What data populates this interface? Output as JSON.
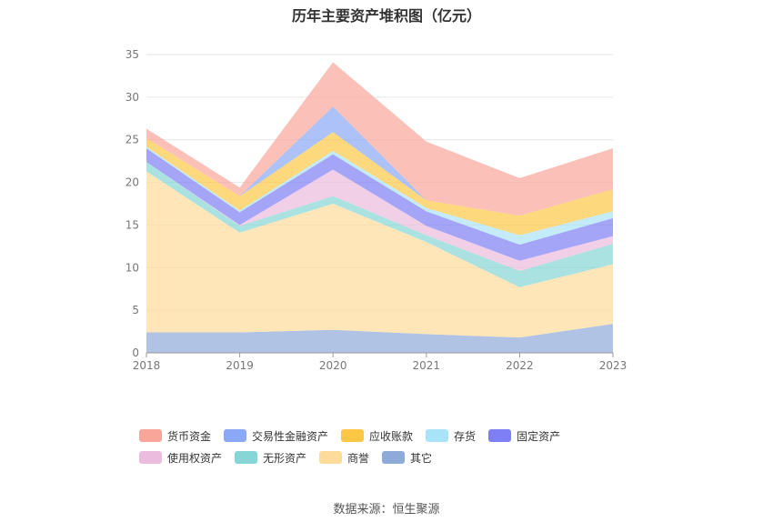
{
  "title": "历年主要资产堆积图（亿元）",
  "source": "数据来源：恒生聚源",
  "chart_data": {
    "type": "area",
    "stacked": true,
    "x": [
      "2018",
      "2019",
      "2020",
      "2021",
      "2022",
      "2023"
    ],
    "ylim": [
      0,
      35
    ],
    "yticks": [
      0,
      5,
      10,
      15,
      20,
      25,
      30,
      35
    ],
    "grid": true,
    "legend_position": "bottom",
    "series": [
      {
        "name": "其它",
        "color": "#8eaad8",
        "values": [
          2.4,
          2.4,
          2.7,
          2.2,
          1.8,
          3.4
        ]
      },
      {
        "name": "商誉",
        "color": "#fddc9b",
        "values": [
          18.9,
          11.7,
          14.8,
          10.8,
          5.9,
          7.0
        ]
      },
      {
        "name": "无形资产",
        "color": "#86d6d6",
        "values": [
          1.1,
          0.8,
          0.9,
          0.8,
          1.9,
          2.4
        ]
      },
      {
        "name": "使用权资产",
        "color": "#ebbcdd",
        "values": [
          0.0,
          0.1,
          3.1,
          1.1,
          1.2,
          0.9
        ]
      },
      {
        "name": "固定资产",
        "color": "#7f7ff5",
        "values": [
          1.6,
          1.5,
          1.8,
          1.7,
          1.9,
          2.1
        ]
      },
      {
        "name": "存货",
        "color": "#a9e3f7",
        "values": [
          0.2,
          0.2,
          0.4,
          0.4,
          1.1,
          0.8
        ]
      },
      {
        "name": "应收账款",
        "color": "#fcc744",
        "values": [
          1.0,
          1.7,
          2.2,
          0.9,
          2.3,
          2.6
        ]
      },
      {
        "name": "交易性金融资产",
        "color": "#8aa8f5",
        "values": [
          0.0,
          0.0,
          3.0,
          0.0,
          0.0,
          0.0
        ]
      },
      {
        "name": "货币资金",
        "color": "#f9a59a",
        "values": [
          1.1,
          1.0,
          5.2,
          6.9,
          4.4,
          4.8
        ]
      }
    ]
  },
  "legend": [
    {
      "name": "货币资金",
      "color": "#f9a59a"
    },
    {
      "name": "交易性金融资产",
      "color": "#8aa8f5"
    },
    {
      "name": "应收账款",
      "color": "#fcc744"
    },
    {
      "name": "存货",
      "color": "#a9e3f7"
    },
    {
      "name": "固定资产",
      "color": "#7f7ff5"
    },
    {
      "name": "使用权资产",
      "color": "#ebbcdd"
    },
    {
      "name": "无形资产",
      "color": "#86d6d6"
    },
    {
      "name": "商誉",
      "color": "#fddc9b"
    },
    {
      "name": "其它",
      "color": "#8eaad8"
    }
  ]
}
